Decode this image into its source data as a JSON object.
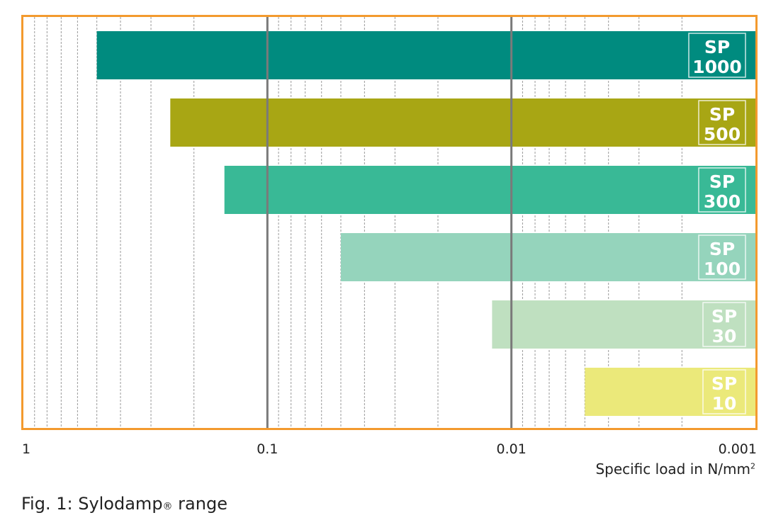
{
  "chart_data": {
    "type": "bar",
    "orientation": "horizontal",
    "title": "Fig. 1: Sylodamp® range",
    "caption_prefix": "Fig. 1: Sylodamp",
    "caption_reg": "®",
    "caption_suffix": " range",
    "xlabel": "Specific load in N/mm",
    "xlabel_sup": "2",
    "xscale": "log",
    "xaxis_reversed": true,
    "xlim": [
      1,
      0.001
    ],
    "xticks": [
      {
        "value": 1,
        "label": "1"
      },
      {
        "value": 0.1,
        "label": "0.1"
      },
      {
        "value": 0.01,
        "label": "0.01"
      },
      {
        "value": 0.001,
        "label": "0.001"
      }
    ],
    "grid": "log minor dashed, major solid at 0.1 and 0.01",
    "border_color": "#f39a2e",
    "series": [
      {
        "name": "SP 1000",
        "line1": "SP",
        "line2": "1000",
        "max": 0.5,
        "min": 0.001,
        "color": "#008b7f"
      },
      {
        "name": "SP 500",
        "line1": "SP",
        "line2": "500",
        "max": 0.25,
        "min": 0.001,
        "color": "#a8a614"
      },
      {
        "name": "SP 300",
        "line1": "SP",
        "line2": "300",
        "max": 0.15,
        "min": 0.001,
        "color": "#39b996"
      },
      {
        "name": "SP 100",
        "line1": "SP",
        "line2": "100",
        "max": 0.05,
        "min": 0.001,
        "color": "#95d4bc"
      },
      {
        "name": "SP 30",
        "line1": "SP",
        "line2": "30",
        "max": 0.012,
        "min": 0.001,
        "color": "#bfe0c0"
      },
      {
        "name": "SP 10",
        "line1": "SP",
        "line2": "10",
        "max": 0.005,
        "min": 0.001,
        "color": "#ebe97a"
      }
    ]
  }
}
